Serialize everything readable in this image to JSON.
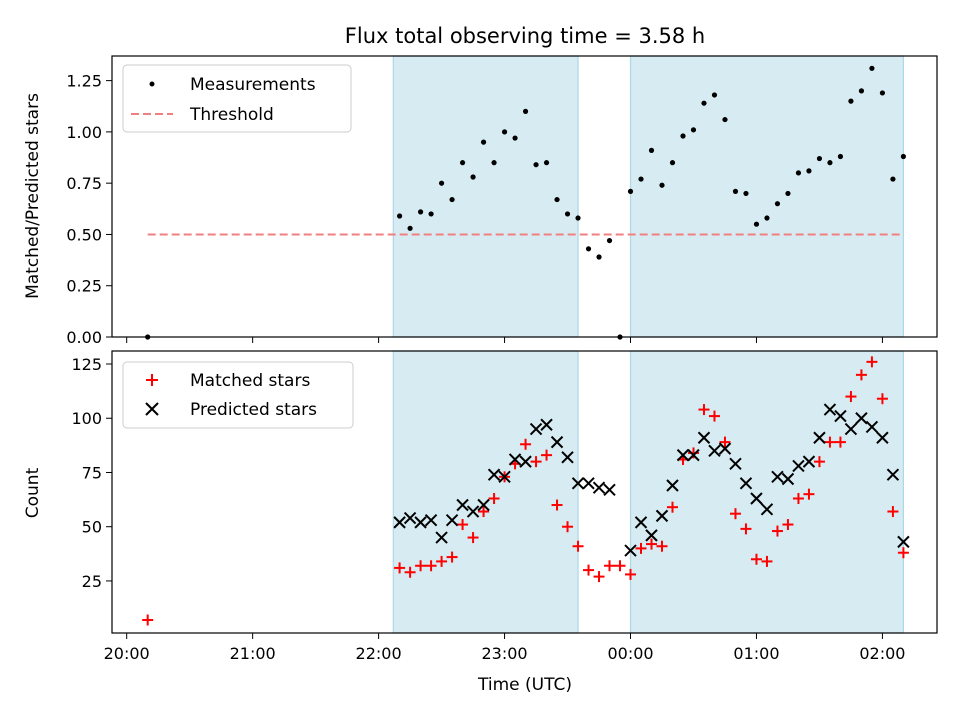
{
  "chart_data": [
    {
      "type": "scatter",
      "title": "Flux total observing time = 3.58 h",
      "xlabel": "",
      "ylabel": "Matched/Predicted stars",
      "ylim": [
        0,
        1.37
      ],
      "yticks": [
        0.0,
        0.25,
        0.5,
        0.75,
        1.0,
        1.25
      ],
      "ytick_labels": [
        "0.00",
        "0.25",
        "0.50",
        "0.75",
        "1.00",
        "1.25"
      ],
      "xlim": [
        "19:53",
        "02:26"
      ],
      "xticks": [
        "20:00",
        "21:00",
        "22:00",
        "23:00",
        "00:00",
        "01:00",
        "02:00"
      ],
      "shaded_intervals": [
        [
          "22:07",
          "23:35"
        ],
        [
          "00:00",
          "02:10"
        ]
      ],
      "legend": "upper left",
      "series": [
        {
          "name": "Measurements",
          "marker": "dot",
          "color": "#000000",
          "points": [
            [
              "20:10",
              0.0
            ],
            [
              "22:10",
              0.59
            ],
            [
              "22:15",
              0.53
            ],
            [
              "22:20",
              0.61
            ],
            [
              "22:25",
              0.6
            ],
            [
              "22:30",
              0.75
            ],
            [
              "22:35",
              0.67
            ],
            [
              "22:40",
              0.85
            ],
            [
              "22:45",
              0.78
            ],
            [
              "22:50",
              0.95
            ],
            [
              "22:55",
              0.85
            ],
            [
              "23:00",
              1.0
            ],
            [
              "23:05",
              0.97
            ],
            [
              "23:10",
              1.1
            ],
            [
              "23:15",
              0.84
            ],
            [
              "23:20",
              0.85
            ],
            [
              "23:25",
              0.67
            ],
            [
              "23:30",
              0.6
            ],
            [
              "23:35",
              0.58
            ],
            [
              "23:40",
              0.43
            ],
            [
              "23:45",
              0.39
            ],
            [
              "23:50",
              0.47
            ],
            [
              "23:55",
              0.0
            ],
            [
              "00:00",
              0.71
            ],
            [
              "00:05",
              0.77
            ],
            [
              "00:10",
              0.91
            ],
            [
              "00:15",
              0.74
            ],
            [
              "00:20",
              0.85
            ],
            [
              "00:25",
              0.98
            ],
            [
              "00:30",
              1.01
            ],
            [
              "00:35",
              1.14
            ],
            [
              "00:40",
              1.18
            ],
            [
              "00:45",
              1.06
            ],
            [
              "00:50",
              0.71
            ],
            [
              "00:55",
              0.7
            ],
            [
              "01:00",
              0.55
            ],
            [
              "01:05",
              0.58
            ],
            [
              "01:10",
              0.65
            ],
            [
              "01:15",
              0.7
            ],
            [
              "01:20",
              0.8
            ],
            [
              "01:25",
              0.81
            ],
            [
              "01:30",
              0.87
            ],
            [
              "01:35",
              0.85
            ],
            [
              "01:40",
              0.88
            ],
            [
              "01:45",
              1.15
            ],
            [
              "01:50",
              1.2
            ],
            [
              "01:55",
              1.31
            ],
            [
              "02:00",
              1.19
            ],
            [
              "02:05",
              0.77
            ],
            [
              "02:10",
              0.88
            ]
          ]
        },
        {
          "name": "Threshold",
          "marker": "dashed-line",
          "color": "#f08080",
          "points": [
            [
              "20:10",
              0.5
            ],
            [
              "02:10",
              0.5
            ]
          ]
        }
      ]
    },
    {
      "type": "scatter",
      "title": "",
      "xlabel": "Time (UTC)",
      "ylabel": "Count",
      "ylim": [
        1,
        131
      ],
      "yticks": [
        25,
        50,
        75,
        100,
        125
      ],
      "ytick_labels": [
        "25",
        "50",
        "75",
        "100",
        "125"
      ],
      "xlim": [
        "19:53",
        "02:26"
      ],
      "xticks": [
        "20:00",
        "21:00",
        "22:00",
        "23:00",
        "00:00",
        "01:00",
        "02:00"
      ],
      "xtick_labels": [
        "20:00",
        "21:00",
        "22:00",
        "23:00",
        "00:00",
        "01:00",
        "02:00"
      ],
      "shaded_intervals": [
        [
          "22:07",
          "23:35"
        ],
        [
          "00:00",
          "02:10"
        ]
      ],
      "legend": "upper left",
      "series": [
        {
          "name": "Matched stars",
          "marker": "plus",
          "color": "#ff0000",
          "points": [
            [
              "20:10",
              7
            ],
            [
              "22:10",
              31
            ],
            [
              "22:15",
              29
            ],
            [
              "22:20",
              32
            ],
            [
              "22:25",
              32
            ],
            [
              "22:30",
              34
            ],
            [
              "22:35",
              36
            ],
            [
              "22:40",
              51
            ],
            [
              "22:45",
              45
            ],
            [
              "22:50",
              57
            ],
            [
              "22:55",
              63
            ],
            [
              "23:00",
              73
            ],
            [
              "23:05",
              79
            ],
            [
              "23:10",
              88
            ],
            [
              "23:15",
              80
            ],
            [
              "23:20",
              83
            ],
            [
              "23:25",
              60
            ],
            [
              "23:30",
              50
            ],
            [
              "23:35",
              41
            ],
            [
              "23:40",
              30
            ],
            [
              "23:45",
              27
            ],
            [
              "23:50",
              32
            ],
            [
              "23:55",
              32
            ],
            [
              "00:00",
              28
            ],
            [
              "00:05",
              40
            ],
            [
              "00:10",
              42
            ],
            [
              "00:15",
              41
            ],
            [
              "00:20",
              59
            ],
            [
              "00:25",
              81
            ],
            [
              "00:30",
              84
            ],
            [
              "00:35",
              104
            ],
            [
              "00:40",
              101
            ],
            [
              "00:45",
              89
            ],
            [
              "00:50",
              56
            ],
            [
              "00:55",
              49
            ],
            [
              "01:00",
              35
            ],
            [
              "01:05",
              34
            ],
            [
              "01:10",
              48
            ],
            [
              "01:15",
              51
            ],
            [
              "01:20",
              63
            ],
            [
              "01:25",
              65
            ],
            [
              "01:30",
              80
            ],
            [
              "01:35",
              89
            ],
            [
              "01:40",
              89
            ],
            [
              "01:45",
              110
            ],
            [
              "01:50",
              120
            ],
            [
              "01:55",
              126
            ],
            [
              "02:00",
              109
            ],
            [
              "02:05",
              57
            ],
            [
              "02:10",
              38
            ]
          ]
        },
        {
          "name": "Predicted stars",
          "marker": "x",
          "color": "#000000",
          "points": [
            [
              "22:10",
              52
            ],
            [
              "22:15",
              54
            ],
            [
              "22:20",
              52
            ],
            [
              "22:25",
              53
            ],
            [
              "22:30",
              45
            ],
            [
              "22:35",
              53
            ],
            [
              "22:40",
              60
            ],
            [
              "22:45",
              57
            ],
            [
              "22:50",
              60
            ],
            [
              "22:55",
              74
            ],
            [
              "23:00",
              73
            ],
            [
              "23:05",
              81
            ],
            [
              "23:10",
              80
            ],
            [
              "23:15",
              95
            ],
            [
              "23:20",
              97
            ],
            [
              "23:25",
              89
            ],
            [
              "23:30",
              82
            ],
            [
              "23:35",
              70
            ],
            [
              "23:40",
              70
            ],
            [
              "23:45",
              68
            ],
            [
              "23:50",
              67
            ],
            [
              "00:00",
              39
            ],
            [
              "00:05",
              52
            ],
            [
              "00:10",
              46
            ],
            [
              "00:15",
              55
            ],
            [
              "00:20",
              69
            ],
            [
              "00:25",
              83
            ],
            [
              "00:30",
              83
            ],
            [
              "00:35",
              91
            ],
            [
              "00:40",
              85
            ],
            [
              "00:45",
              86
            ],
            [
              "00:50",
              79
            ],
            [
              "00:55",
              70
            ],
            [
              "01:00",
              63
            ],
            [
              "01:05",
              58
            ],
            [
              "01:10",
              73
            ],
            [
              "01:15",
              72
            ],
            [
              "01:20",
              78
            ],
            [
              "01:25",
              80
            ],
            [
              "01:30",
              91
            ],
            [
              "01:35",
              104
            ],
            [
              "01:40",
              101
            ],
            [
              "01:45",
              95
            ],
            [
              "01:50",
              100
            ],
            [
              "01:55",
              96
            ],
            [
              "02:00",
              91
            ],
            [
              "02:05",
              74
            ],
            [
              "02:10",
              43
            ]
          ]
        }
      ]
    }
  ]
}
